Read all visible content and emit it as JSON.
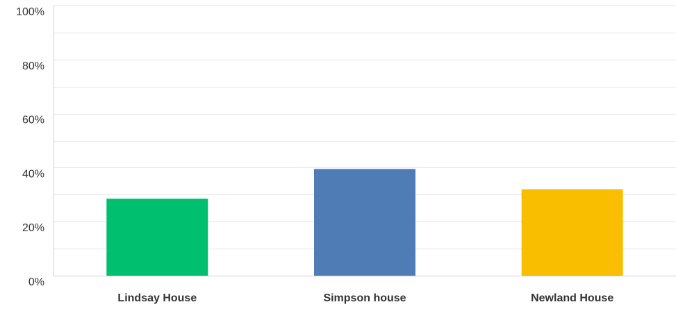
{
  "chart_data": {
    "type": "bar",
    "categories": [
      "Lindsay House",
      "Simpson house",
      "Newland House"
    ],
    "values": [
      28.5,
      39.5,
      32
    ],
    "colors": [
      "#00bf6f",
      "#507cb6",
      "#f9be00"
    ],
    "ylim": [
      0,
      100
    ],
    "yticks": [
      0,
      20,
      40,
      60,
      80,
      100
    ],
    "ytick_labels": [
      "0%",
      "20%",
      "40%",
      "60%",
      "80%",
      "100%"
    ],
    "minor_gridlines": [
      10,
      30,
      50,
      70,
      90
    ],
    "grid": true,
    "legend": "none",
    "title": "",
    "xlabel": "",
    "ylabel": ""
  }
}
